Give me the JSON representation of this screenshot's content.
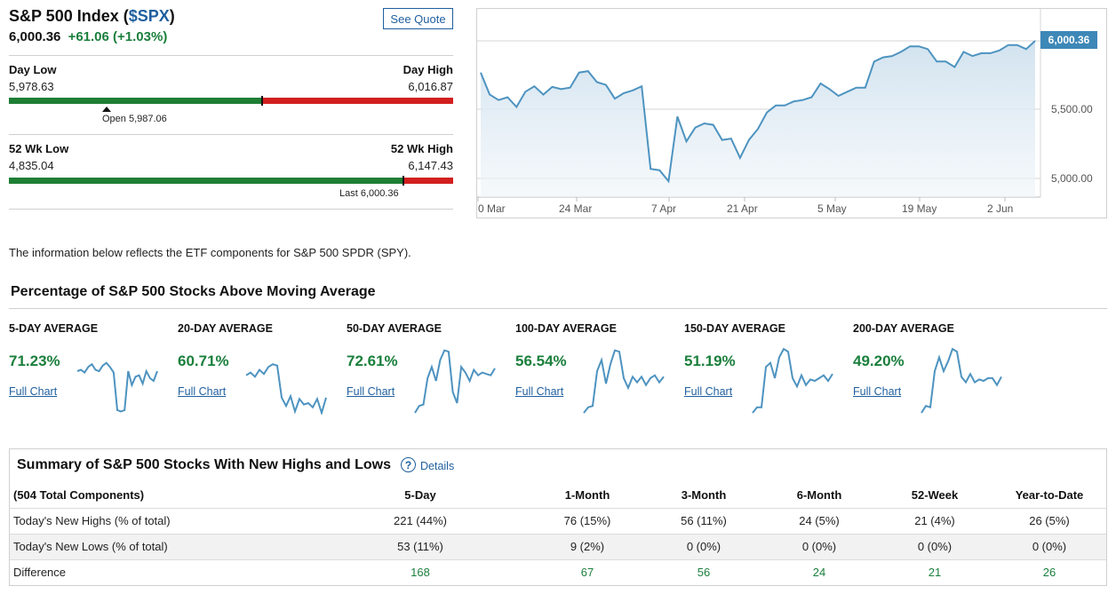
{
  "header": {
    "title_prefix": "S&P 500 Index (",
    "ticker": "$SPX",
    "title_suffix": ")",
    "price": "6,000.36",
    "change": "+61.06 (+1.03%)",
    "see_quote_label": "See Quote"
  },
  "day_range": {
    "low_label": "Day Low",
    "low_value": "5,978.63",
    "high_label": "Day High",
    "high_value": "6,016.87",
    "open_note": "Open 5,987.06",
    "current_fraction": 0.57,
    "open_fraction": 0.22
  },
  "week52_range": {
    "low_label": "52 Wk Low",
    "low_value": "4,835.04",
    "high_label": "52 Wk High",
    "high_value": "6,147.43",
    "last_note": "Last 6,000.36",
    "current_fraction": 0.888
  },
  "price_chart": {
    "current_label": "6,000.36",
    "y_ticks": [
      "5,500.00",
      "5,000.00"
    ],
    "x_ticks": [
      "0 Mar",
      "24 Mar",
      "7 Apr",
      "21 Apr",
      "5 May",
      "19 May",
      "2 Jun"
    ],
    "series": [
      5770,
      5610,
      5570,
      5590,
      5520,
      5630,
      5670,
      5610,
      5665,
      5650,
      5660,
      5770,
      5780,
      5700,
      5680,
      5580,
      5620,
      5640,
      5670,
      5070,
      5060,
      4980,
      5450,
      5270,
      5370,
      5400,
      5390,
      5280,
      5290,
      5150,
      5280,
      5360,
      5480,
      5530,
      5530,
      5560,
      5570,
      5590,
      5690,
      5650,
      5600,
      5630,
      5660,
      5660,
      5850,
      5880,
      5890,
      5920,
      5960,
      5960,
      5940,
      5850,
      5850,
      5810,
      5920,
      5890,
      5910,
      5910,
      5930,
      5970,
      5970,
      5940,
      6000
    ]
  },
  "info_text": "The information below reflects the ETF components for S&P 500 SPDR (SPY).",
  "moving_averages": {
    "heading": "Percentage of S&P 500 Stocks Above Moving Average",
    "items": [
      {
        "title": "5-DAY AVERAGE",
        "value": "71.23%",
        "link": "Full Chart",
        "spark": [
          60,
          62,
          58,
          66,
          70,
          62,
          60,
          68,
          72,
          66,
          58,
          4,
          2,
          4,
          60,
          40,
          52,
          54,
          42,
          60,
          50,
          46,
          60
        ]
      },
      {
        "title": "20-DAY AVERAGE",
        "value": "60.71%",
        "link": "Full Chart",
        "spark": [
          54,
          58,
          52,
          62,
          56,
          66,
          70,
          68,
          22,
          10,
          24,
          2,
          20,
          12,
          14,
          8,
          20,
          0,
          22
        ]
      },
      {
        "title": "50-DAY AVERAGE",
        "value": "72.61%",
        "link": "Full Chart",
        "spark": [
          0,
          10,
          12,
          50,
          66,
          46,
          76,
          90,
          88,
          30,
          14,
          66,
          58,
          46,
          62,
          54,
          58,
          56,
          54,
          64
        ]
      },
      {
        "title": "100-DAY AVERAGE",
        "value": "56.54%",
        "link": "Full Chart",
        "spark": [
          0,
          8,
          10,
          60,
          76,
          42,
          70,
          90,
          88,
          50,
          36,
          52,
          44,
          52,
          40,
          50,
          54,
          44,
          52
        ]
      },
      {
        "title": "150-DAY AVERAGE",
        "value": "51.19%",
        "link": "Full Chart",
        "spark": [
          0,
          8,
          8,
          66,
          72,
          50,
          80,
          92,
          88,
          50,
          38,
          54,
          40,
          48,
          46,
          50,
          54,
          46,
          56
        ]
      },
      {
        "title": "200-DAY AVERAGE",
        "value": "49.20%",
        "link": "Full Chart",
        "spark": [
          0,
          10,
          8,
          60,
          80,
          60,
          74,
          92,
          88,
          52,
          44,
          56,
          44,
          48,
          46,
          50,
          50,
          40,
          52
        ]
      }
    ]
  },
  "summary": {
    "heading": "Summary of S&P 500 Stocks With New Highs and Lows",
    "details_label": "Details",
    "help_glyph": "?",
    "columns": [
      "(504 Total Components)",
      "5-Day",
      "1-Month",
      "3-Month",
      "6-Month",
      "52-Week",
      "Year-to-Date"
    ],
    "rows": [
      {
        "label": "Today's New Highs (% of total)",
        "cells": [
          "221 (44%)",
          "76 (15%)",
          "56 (11%)",
          "24 (5%)",
          "21 (4%)",
          "26 (5%)"
        ]
      },
      {
        "label": "Today's New Lows (% of total)",
        "cells": [
          "53 (11%)",
          "9 (2%)",
          "0 (0%)",
          "0 (0%)",
          "0 (0%)",
          "0 (0%)"
        ]
      },
      {
        "label": "Difference",
        "cells": [
          "168",
          "67",
          "56",
          "24",
          "21",
          "26"
        ]
      }
    ]
  },
  "colors": {
    "accent_blue": "#1f5f9e",
    "positive_green": "#1a7f3c",
    "range_green": "#1e7e34",
    "range_red": "#d11f1f",
    "chart_line": "#4d93c0",
    "price_tag": "#3d88b7"
  }
}
